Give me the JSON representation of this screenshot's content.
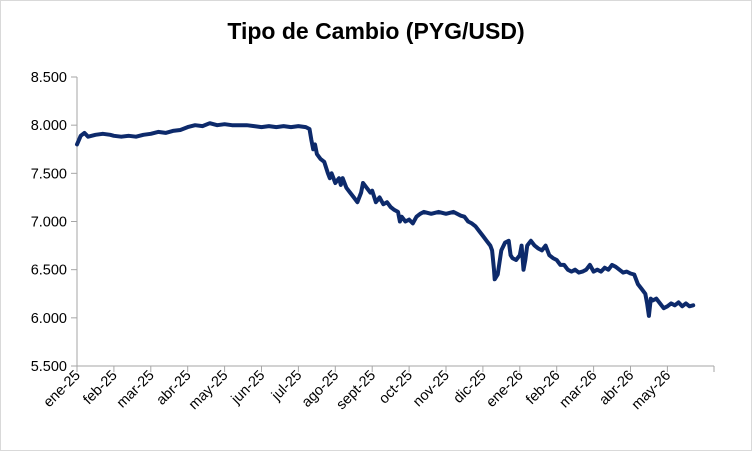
{
  "chart_data": {
    "type": "line",
    "title": "Tipo de Cambio (PYG/USD)",
    "xlabel": "",
    "ylabel": "",
    "ylim": [
      5500,
      8500
    ],
    "yticks": [
      "5.500",
      "6.000",
      "6.500",
      "7.000",
      "7.500",
      "8.000",
      "8.500"
    ],
    "ytick_values": [
      5500,
      6000,
      6500,
      7000,
      7500,
      8000,
      8500
    ],
    "categories": [
      "ene-25",
      "feb-25",
      "mar-25",
      "abr-25",
      "may-25",
      "jun-25",
      "jul-25",
      "ago-25",
      "sept-25",
      "oct-25",
      "nov-25",
      "dic-25",
      "ene-26",
      "feb-26",
      "mar-26",
      "abr-26",
      "may-26"
    ],
    "grid": false,
    "legend": "none",
    "line_color": "#0d2a6b",
    "series": [
      {
        "values": [
          [
            0.0,
            7800
          ],
          [
            0.1,
            7890
          ],
          [
            0.2,
            7920
          ],
          [
            0.3,
            7880
          ],
          [
            0.5,
            7900
          ],
          [
            0.7,
            7910
          ],
          [
            0.9,
            7900
          ],
          [
            1.0,
            7890
          ],
          [
            1.2,
            7880
          ],
          [
            1.4,
            7890
          ],
          [
            1.6,
            7880
          ],
          [
            1.8,
            7900
          ],
          [
            2.0,
            7910
          ],
          [
            2.2,
            7930
          ],
          [
            2.4,
            7920
          ],
          [
            2.6,
            7940
          ],
          [
            2.8,
            7950
          ],
          [
            3.0,
            7980
          ],
          [
            3.2,
            8000
          ],
          [
            3.4,
            7990
          ],
          [
            3.6,
            8020
          ],
          [
            3.8,
            8000
          ],
          [
            4.0,
            8010
          ],
          [
            4.2,
            8000
          ],
          [
            4.4,
            8000
          ],
          [
            4.6,
            8000
          ],
          [
            4.8,
            7990
          ],
          [
            5.0,
            7980
          ],
          [
            5.2,
            7990
          ],
          [
            5.4,
            7980
          ],
          [
            5.6,
            7990
          ],
          [
            5.8,
            7980
          ],
          [
            6.0,
            7990
          ],
          [
            6.2,
            7980
          ],
          [
            6.3,
            7960
          ],
          [
            6.35,
            7850
          ],
          [
            6.4,
            7750
          ],
          [
            6.45,
            7800
          ],
          [
            6.5,
            7700
          ],
          [
            6.6,
            7650
          ],
          [
            6.7,
            7620
          ],
          [
            6.8,
            7500
          ],
          [
            6.85,
            7450
          ],
          [
            6.9,
            7500
          ],
          [
            7.0,
            7400
          ],
          [
            7.1,
            7450
          ],
          [
            7.15,
            7380
          ],
          [
            7.2,
            7450
          ],
          [
            7.3,
            7350
          ],
          [
            7.4,
            7300
          ],
          [
            7.5,
            7250
          ],
          [
            7.6,
            7200
          ],
          [
            7.7,
            7300
          ],
          [
            7.75,
            7400
          ],
          [
            7.85,
            7350
          ],
          [
            7.95,
            7300
          ],
          [
            8.0,
            7320
          ],
          [
            8.1,
            7200
          ],
          [
            8.2,
            7250
          ],
          [
            8.3,
            7180
          ],
          [
            8.4,
            7200
          ],
          [
            8.5,
            7150
          ],
          [
            8.6,
            7120
          ],
          [
            8.7,
            7100
          ],
          [
            8.75,
            7000
          ],
          [
            8.8,
            7050
          ],
          [
            8.9,
            7000
          ],
          [
            9.0,
            7020
          ],
          [
            9.1,
            6980
          ],
          [
            9.2,
            7050
          ],
          [
            9.3,
            7080
          ],
          [
            9.4,
            7100
          ],
          [
            9.6,
            7080
          ],
          [
            9.8,
            7100
          ],
          [
            10.0,
            7080
          ],
          [
            10.2,
            7100
          ],
          [
            10.4,
            7060
          ],
          [
            10.5,
            7050
          ],
          [
            10.6,
            7000
          ],
          [
            10.7,
            6980
          ],
          [
            10.8,
            6950
          ],
          [
            10.9,
            6900
          ],
          [
            11.0,
            6850
          ],
          [
            11.1,
            6800
          ],
          [
            11.2,
            6750
          ],
          [
            11.25,
            6700
          ],
          [
            11.3,
            6500
          ],
          [
            11.32,
            6400
          ],
          [
            11.4,
            6450
          ],
          [
            11.5,
            6700
          ],
          [
            11.6,
            6780
          ],
          [
            11.7,
            6800
          ],
          [
            11.75,
            6650
          ],
          [
            11.8,
            6620
          ],
          [
            11.9,
            6600
          ],
          [
            12.0,
            6650
          ],
          [
            12.05,
            6750
          ],
          [
            12.1,
            6500
          ],
          [
            12.15,
            6600
          ],
          [
            12.2,
            6750
          ],
          [
            12.3,
            6800
          ],
          [
            12.4,
            6750
          ],
          [
            12.5,
            6720
          ],
          [
            12.6,
            6700
          ],
          [
            12.7,
            6750
          ],
          [
            12.8,
            6650
          ],
          [
            12.9,
            6620
          ],
          [
            13.0,
            6600
          ],
          [
            13.1,
            6550
          ],
          [
            13.2,
            6550
          ],
          [
            13.3,
            6500
          ],
          [
            13.4,
            6480
          ],
          [
            13.5,
            6500
          ],
          [
            13.6,
            6470
          ],
          [
            13.7,
            6480
          ],
          [
            13.8,
            6500
          ],
          [
            13.9,
            6550
          ],
          [
            14.0,
            6480
          ],
          [
            14.1,
            6500
          ],
          [
            14.2,
            6480
          ],
          [
            14.3,
            6520
          ],
          [
            14.4,
            6500
          ],
          [
            14.5,
            6550
          ],
          [
            14.6,
            6530
          ],
          [
            14.7,
            6500
          ],
          [
            14.8,
            6470
          ],
          [
            14.9,
            6480
          ],
          [
            15.0,
            6460
          ],
          [
            15.1,
            6450
          ],
          [
            15.2,
            6350
          ],
          [
            15.3,
            6300
          ],
          [
            15.4,
            6250
          ],
          [
            15.45,
            6150
          ],
          [
            15.5,
            6020
          ],
          [
            15.55,
            6200
          ],
          [
            15.6,
            6180
          ],
          [
            15.7,
            6200
          ],
          [
            15.8,
            6150
          ],
          [
            15.9,
            6100
          ],
          [
            16.0,
            6120
          ],
          [
            16.1,
            6150
          ],
          [
            16.2,
            6130
          ],
          [
            16.3,
            6160
          ],
          [
            16.4,
            6120
          ],
          [
            16.5,
            6150
          ],
          [
            16.6,
            6120
          ],
          [
            16.7,
            6130
          ]
        ]
      }
    ]
  }
}
